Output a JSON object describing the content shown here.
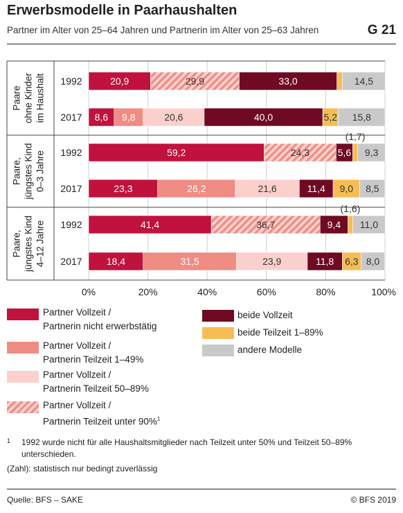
{
  "title": "Erwerbsmodelle in Paarhaushalten",
  "subtitle": "Partner im Alter von 25–64 Jahren und Partnerin im Alter von 25–63 Jahren",
  "code": "G 21",
  "chart_data": {
    "type": "bar",
    "orientation": "horizontal",
    "stacked": true,
    "xlim": [
      0,
      100
    ],
    "x_ticks": [
      "0%",
      "20%",
      "40%",
      "60%",
      "80%",
      "100%"
    ],
    "groups": [
      {
        "label_lines": [
          "Paare",
          "ohne Kinder",
          "im Haushalt"
        ],
        "rows": [
          "1992",
          "2017"
        ]
      },
      {
        "label_lines": [
          "Paare,",
          "jüngstes Kind",
          "0–3 Jahre"
        ],
        "rows": [
          "1992",
          "2017"
        ]
      },
      {
        "label_lines": [
          "Paare,",
          "jüngstes Kind",
          "4–12 Jahre"
        ],
        "rows": [
          "1992",
          "2017"
        ]
      }
    ],
    "categories": [
      "1992",
      "2017",
      "1992",
      "2017",
      "1992",
      "2017"
    ],
    "series": [
      {
        "name": "Partner Vollzeit / Partnerin nicht erwerbstätig",
        "color": "#c0123c",
        "values": [
          20.9,
          8.6,
          59.2,
          23.3,
          41.4,
          18.4
        ]
      },
      {
        "name": "Partner Vollzeit / Partnerin Teilzeit 1–49%",
        "color": "#ef8c84",
        "values": [
          null,
          9.8,
          null,
          26.2,
          null,
          31.5
        ]
      },
      {
        "name": "Partner Vollzeit / Partnerin Teilzeit 50–89%",
        "color": "#fbd0cc",
        "values": [
          null,
          20.6,
          null,
          21.6,
          null,
          23.9
        ]
      },
      {
        "name": "Partner Vollzeit / Partnerin Teilzeit unter 90%",
        "color": "#ef8c84",
        "hatched": true,
        "values": [
          29.9,
          null,
          24.3,
          null,
          36.7,
          null
        ]
      },
      {
        "name": "beide Vollzeit",
        "color": "#6f0a22",
        "values": [
          33.0,
          40.0,
          5.6,
          11.4,
          9.4,
          11.8
        ]
      },
      {
        "name": "beide Teilzeit 1–89%",
        "color": "#f7bd55",
        "values": [
          1.8,
          5.2,
          1.7,
          9.0,
          1.6,
          6.3
        ]
      },
      {
        "name": "andere Modelle",
        "color": "#c9c9c9",
        "values": [
          14.5,
          15.8,
          9.3,
          8.5,
          11.0,
          8.0
        ]
      }
    ],
    "value_labels": [
      [
        "20,9",
        null,
        null,
        "29,9",
        "33,0",
        "1,8",
        "14,5"
      ],
      [
        "8,6",
        "9,8",
        "20,6",
        null,
        "40,0",
        "5,2",
        "15,8"
      ],
      [
        "59,2",
        null,
        null,
        "24,3",
        "5,6",
        "(1,7)",
        "9,3"
      ],
      [
        "23,3",
        "26,2",
        "21,6",
        null,
        "11,4",
        "9,0",
        "8,5"
      ],
      [
        "41,4",
        null,
        null,
        "36,7",
        "9,4",
        "(1,6)",
        "11,0"
      ],
      [
        "18,4",
        "31,5",
        "23,9",
        null,
        "11,8",
        "6,3",
        "8,0"
      ]
    ]
  },
  "legend": {
    "left": [
      {
        "line1": "Partner Vollzeit /",
        "line2": "Partnerin nicht erwerbstätig",
        "sup": ""
      },
      {
        "line1": "Partner Vollzeit /",
        "line2": "Partnerin Teilzeit 1–49%",
        "sup": ""
      },
      {
        "line1": "Partner Vollzeit /",
        "line2": "Partnerin Teilzeit 50–89%",
        "sup": ""
      },
      {
        "line1": "Partner Vollzeit /",
        "line2": "Partnerin Teilzeit unter 90%",
        "sup": "1"
      }
    ],
    "right": [
      {
        "label": "beide Vollzeit"
      },
      {
        "label": "beide Teilzeit 1–89%"
      },
      {
        "label": "andere Modelle"
      }
    ]
  },
  "footnote": {
    "marker": "1",
    "text_line1": "1992 wurde nicht für alle Haushaltsmitglieder nach Teilzeit unter 50% und Teilzeit 50–89%",
    "text_line2": "unterschieden.",
    "note": "(Zahl): statistisch nur bedingt zuverlässig"
  },
  "source": "Quelle: BFS – SAKE",
  "copyright": "© BFS 2019"
}
